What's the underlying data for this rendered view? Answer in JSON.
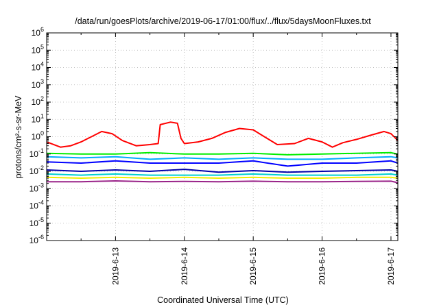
{
  "chart_data": {
    "type": "line",
    "title": "/data/run/goesPlots/archive/2019-06-17/01:00/flux/../flux/5daysMoonFluxes.txt",
    "xlabel": "Coordinated Universal Time (UTC)",
    "ylabel": "protons/cm²-s-sr-MeV",
    "yscale": "log",
    "ylim": [
      1e-06,
      1000000.0
    ],
    "xlim_days": [
      12.0,
      17.1
    ],
    "grid": true,
    "yticks": [
      {
        "mant": "10",
        "exp": "-6",
        "value": 1e-06
      },
      {
        "mant": "10",
        "exp": "-5",
        "value": 1e-05
      },
      {
        "mant": "10",
        "exp": "-4",
        "value": 0.0001
      },
      {
        "mant": "10",
        "exp": "-3",
        "value": 0.001
      },
      {
        "mant": "10",
        "exp": "-2",
        "value": 0.01
      },
      {
        "mant": "10",
        "exp": "-1",
        "value": 0.1
      },
      {
        "mant": "10",
        "exp": "0",
        "value": 1
      },
      {
        "mant": "10",
        "exp": "1",
        "value": 10
      },
      {
        "mant": "10",
        "exp": "2",
        "value": 100
      },
      {
        "mant": "10",
        "exp": "3",
        "value": 1000
      },
      {
        "mant": "10",
        "exp": "4",
        "value": 10000
      },
      {
        "mant": "10",
        "exp": "5",
        "value": 100000
      },
      {
        "mant": "10",
        "exp": "6",
        "value": 1000000
      }
    ],
    "xticks": [
      {
        "label": "2019-6-13",
        "day": 13
      },
      {
        "label": "2019-6-14",
        "day": 14
      },
      {
        "label": "2019-6-15",
        "day": 15
      },
      {
        "label": "2019-6-16",
        "day": 16
      },
      {
        "label": "2019-6-17",
        "day": 17
      }
    ],
    "series": [
      {
        "color": "#ff0000",
        "x": [
          12.0,
          12.2,
          12.35,
          12.5,
          12.65,
          12.8,
          12.95,
          13.1,
          13.3,
          13.5,
          13.62,
          13.65,
          13.8,
          13.9,
          13.95,
          14.0,
          14.2,
          14.4,
          14.6,
          14.8,
          15.0,
          15.2,
          15.35,
          15.6,
          15.8,
          16.0,
          16.15,
          16.3,
          16.5,
          16.7,
          16.9,
          17.0,
          17.1
        ],
        "y": [
          0.5,
          0.25,
          0.3,
          0.5,
          1.0,
          2.0,
          1.5,
          0.6,
          0.3,
          0.35,
          0.4,
          5.0,
          7.0,
          6.0,
          0.8,
          0.4,
          0.5,
          0.8,
          1.8,
          3.0,
          2.5,
          0.8,
          0.35,
          0.4,
          0.8,
          0.5,
          0.25,
          0.45,
          0.7,
          1.2,
          2.0,
          1.5,
          0.6
        ]
      },
      {
        "color": "#00ee00",
        "x": [
          12.0,
          12.5,
          13.0,
          13.5,
          14.0,
          14.5,
          15.0,
          15.5,
          16.0,
          16.5,
          17.0,
          17.1
        ],
        "y": [
          0.11,
          0.1,
          0.1,
          0.12,
          0.1,
          0.1,
          0.11,
          0.09,
          0.1,
          0.11,
          0.12,
          0.1
        ]
      },
      {
        "color": "#00aaff",
        "x": [
          12.0,
          12.5,
          13.0,
          13.5,
          14.0,
          14.5,
          15.0,
          15.5,
          16.0,
          16.5,
          17.0,
          17.1
        ],
        "y": [
          0.07,
          0.06,
          0.07,
          0.05,
          0.06,
          0.05,
          0.06,
          0.05,
          0.05,
          0.06,
          0.07,
          0.06
        ]
      },
      {
        "color": "#0000ff",
        "x": [
          12.0,
          12.5,
          13.0,
          13.5,
          14.0,
          14.5,
          15.0,
          15.5,
          16.0,
          16.5,
          17.0,
          17.1
        ],
        "y": [
          0.035,
          0.03,
          0.04,
          0.03,
          0.03,
          0.03,
          0.04,
          0.02,
          0.03,
          0.03,
          0.04,
          0.03
        ]
      },
      {
        "color": "#0000aa",
        "x": [
          12.0,
          12.5,
          13.0,
          13.5,
          14.0,
          14.5,
          15.0,
          15.5,
          16.0,
          16.5,
          17.0,
          17.1
        ],
        "y": [
          0.012,
          0.01,
          0.012,
          0.01,
          0.013,
          0.009,
          0.011,
          0.009,
          0.01,
          0.011,
          0.012,
          0.01
        ]
      },
      {
        "color": "#00d0d0",
        "x": [
          12.0,
          12.5,
          13.0,
          13.5,
          14.0,
          14.5,
          15.0,
          15.5,
          16.0,
          16.5,
          17.0,
          17.1
        ],
        "y": [
          0.007,
          0.006,
          0.007,
          0.006,
          0.006,
          0.006,
          0.007,
          0.006,
          0.006,
          0.006,
          0.007,
          0.006
        ]
      },
      {
        "color": "#eeee00",
        "x": [
          12.0,
          12.5,
          13.0,
          13.5,
          14.0,
          14.5,
          15.0,
          15.5,
          16.0,
          16.5,
          17.0,
          17.1
        ],
        "y": [
          0.0045,
          0.004,
          0.0045,
          0.004,
          0.0045,
          0.004,
          0.0045,
          0.004,
          0.004,
          0.0045,
          0.0045,
          0.004
        ]
      },
      {
        "color": "#992288",
        "x": [
          12.0,
          12.5,
          13.0,
          13.5,
          14.0,
          14.5,
          15.0,
          15.5,
          16.0,
          16.5,
          17.0,
          17.1
        ],
        "y": [
          0.0025,
          0.0025,
          0.0028,
          0.0025,
          0.0026,
          0.0025,
          0.0027,
          0.0025,
          0.0025,
          0.0026,
          0.0027,
          0.0022
        ]
      }
    ]
  }
}
